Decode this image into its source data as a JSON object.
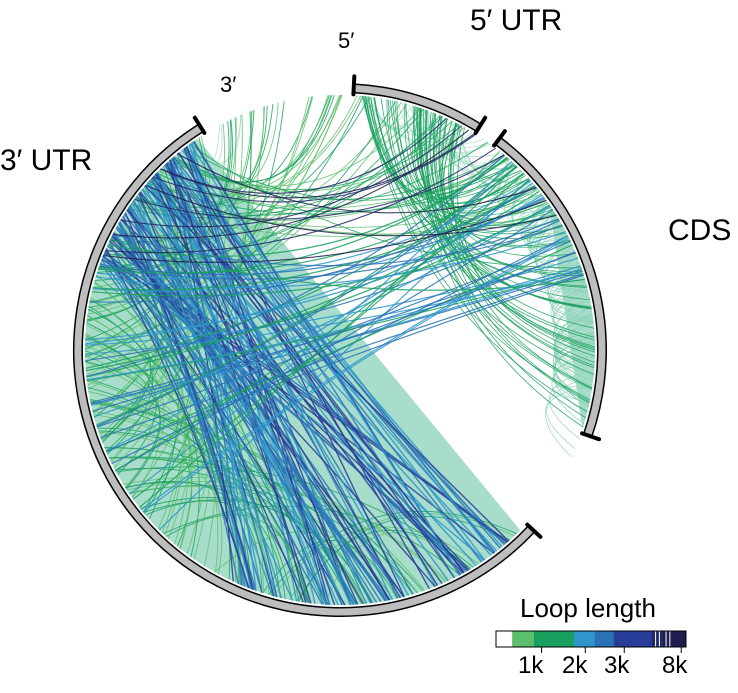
{
  "segments": [
    {
      "id": "utr5",
      "label": "5′ UTR",
      "start_deg": 3,
      "end_deg": 32
    },
    {
      "id": "cds",
      "label": "CDS",
      "start_deg": 37,
      "end_deg": 109
    },
    {
      "id": "utr3",
      "label": "3′ UTR",
      "start_deg": 133,
      "end_deg": 328
    }
  ],
  "ends": {
    "five_prime": "5′",
    "three_prime": "3′"
  },
  "legend": {
    "title": "Loop length",
    "ticks": [
      {
        "label": "1k",
        "value": 1000
      },
      {
        "label": "2k",
        "value": 2000
      },
      {
        "label": "3k",
        "value": 3000
      },
      {
        "label": "8k",
        "value": 8000
      }
    ]
  },
  "colors": {
    "outline_ring": "#bdbdbd",
    "dense_fill": "#a8dccb",
    "scale": [
      "#ffffff",
      "#5dbf6c",
      "#1aa05e",
      "#2f95cb",
      "#2a71b5",
      "#283d97",
      "#23286b",
      "#1f1d4e"
    ]
  }
}
